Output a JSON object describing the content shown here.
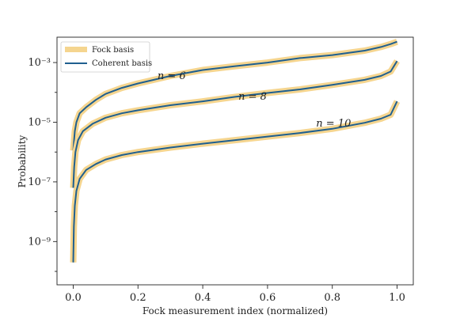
{
  "chart_data": {
    "type": "line",
    "title": "",
    "xlabel": "Fock measurement index (normalized)",
    "ylabel": "Probability",
    "xlim": [
      -0.05,
      1.05
    ],
    "ylim_log10": [
      -10.45,
      -2.15
    ],
    "y_scale": "log",
    "grid": false,
    "legend_position": "top-left",
    "x_ticks": [
      0.0,
      0.2,
      0.4,
      0.6,
      0.8,
      1.0
    ],
    "x_tick_labels": [
      "0.0",
      "0.2",
      "0.4",
      "0.6",
      "0.8",
      "1.0"
    ],
    "y_ticks_log10": [
      -9,
      -7,
      -5,
      -3
    ],
    "y_tick_labels": [
      "10⁻⁹",
      "10⁻⁷",
      "10⁻⁵",
      "10⁻³"
    ],
    "legend": [
      {
        "label": "Fock basis",
        "color": "#f5d58f",
        "style": "thick-band"
      },
      {
        "label": "Coherent basis",
        "color": "#1f5f8f",
        "style": "line"
      }
    ],
    "curves": [
      {
        "annotation": "n = 6",
        "annotation_at": {
          "x": 0.26,
          "log10y": -3.55
        },
        "x": [
          0.0,
          0.005,
          0.01,
          0.02,
          0.04,
          0.07,
          0.1,
          0.15,
          0.2,
          0.3,
          0.4,
          0.5,
          0.6,
          0.7,
          0.8,
          0.9,
          0.95,
          0.98,
          1.0
        ],
        "log10y": [
          -5.95,
          -5.3,
          -5.0,
          -4.7,
          -4.5,
          -4.25,
          -4.05,
          -3.85,
          -3.7,
          -3.45,
          -3.25,
          -3.12,
          -3.0,
          -2.85,
          -2.75,
          -2.6,
          -2.48,
          -2.38,
          -2.3
        ]
      },
      {
        "annotation": "n = 8",
        "annotation_at": {
          "x": 0.51,
          "log10y": -4.25
        },
        "x": [
          0.0,
          0.003,
          0.007,
          0.015,
          0.03,
          0.06,
          0.1,
          0.15,
          0.2,
          0.3,
          0.4,
          0.5,
          0.6,
          0.7,
          0.8,
          0.9,
          0.95,
          0.98,
          1.0
        ],
        "log10y": [
          -7.2,
          -6.5,
          -6.0,
          -5.6,
          -5.3,
          -5.05,
          -4.85,
          -4.7,
          -4.6,
          -4.43,
          -4.3,
          -4.15,
          -4.02,
          -3.9,
          -3.75,
          -3.58,
          -3.45,
          -3.3,
          -2.95
        ]
      },
      {
        "annotation": "n = 10",
        "annotation_at": {
          "x": 0.75,
          "log10y": -5.15
        },
        "x": [
          0.0,
          0.002,
          0.005,
          0.01,
          0.02,
          0.04,
          0.07,
          0.1,
          0.15,
          0.2,
          0.3,
          0.4,
          0.5,
          0.6,
          0.7,
          0.8,
          0.9,
          0.95,
          0.98,
          1.0
        ],
        "log10y": [
          -9.7,
          -8.5,
          -7.8,
          -7.3,
          -6.9,
          -6.6,
          -6.4,
          -6.25,
          -6.1,
          -6.0,
          -5.85,
          -5.72,
          -5.6,
          -5.48,
          -5.36,
          -5.22,
          -5.02,
          -4.88,
          -4.75,
          -4.3
        ]
      }
    ]
  }
}
